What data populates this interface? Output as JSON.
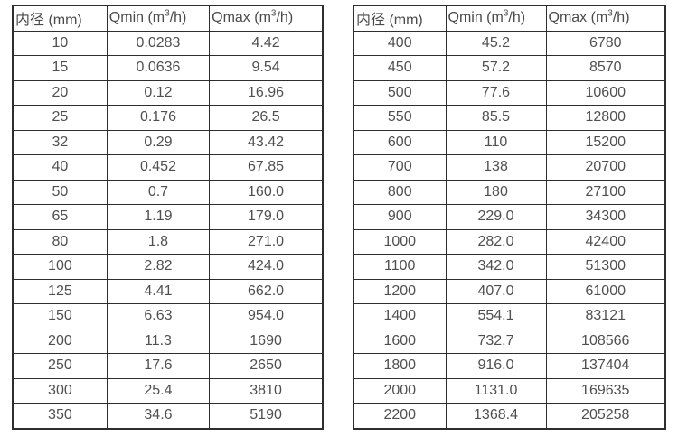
{
  "page": {
    "background_color": "#ffffff",
    "text_color": "#4f4f4f",
    "border_color": "#2e2e2e"
  },
  "tables": [
    {
      "name": "small-diameter-spec-table",
      "headers": [
        {
          "pre": "内径 (mm)",
          "sup": "",
          "post": ""
        },
        {
          "pre": "Qmin (m",
          "sup": "3",
          "post": "/h)"
        },
        {
          "pre": "Qmax (m",
          "sup": "3",
          "post": "/h)"
        }
      ],
      "rows": [
        [
          "10",
          "0.0283",
          "4.42"
        ],
        [
          "15",
          "0.0636",
          "9.54"
        ],
        [
          "20",
          "0.12",
          "16.96"
        ],
        [
          "25",
          "0.176",
          "26.5"
        ],
        [
          "32",
          "0.29",
          "43.42"
        ],
        [
          "40",
          "0.452",
          "67.85"
        ],
        [
          "50",
          "0.7",
          "160.0"
        ],
        [
          "65",
          "1.19",
          "179.0"
        ],
        [
          "80",
          "1.8",
          "271.0"
        ],
        [
          "100",
          "2.82",
          "424.0"
        ],
        [
          "125",
          "4.41",
          "662.0"
        ],
        [
          "150",
          "6.63",
          "954.0"
        ],
        [
          "200",
          "11.3",
          "1690"
        ],
        [
          "250",
          "17.6",
          "2650"
        ],
        [
          "300",
          "25.4",
          "3810"
        ],
        [
          "350",
          "34.6",
          "5190"
        ]
      ]
    },
    {
      "name": "large-diameter-spec-table",
      "headers": [
        {
          "pre": "内径 (mm)",
          "sup": "",
          "post": ""
        },
        {
          "pre": "Qmin (m",
          "sup": "3",
          "post": "/h)"
        },
        {
          "pre": "Qmax (m",
          "sup": "3",
          "post": "/h)"
        }
      ],
      "rows": [
        [
          "400",
          "45.2",
          "6780"
        ],
        [
          "450",
          "57.2",
          "8570"
        ],
        [
          "500",
          "77.6",
          "10600"
        ],
        [
          "550",
          "85.5",
          "12800"
        ],
        [
          "600",
          "110",
          "15200"
        ],
        [
          "700",
          "138",
          "20700"
        ],
        [
          "800",
          "180",
          "27100"
        ],
        [
          "900",
          "229.0",
          "34300"
        ],
        [
          "1000",
          "282.0",
          "42400"
        ],
        [
          "1100",
          "342.0",
          "51300"
        ],
        [
          "1200",
          "407.0",
          "61000"
        ],
        [
          "1400",
          "554.1",
          "83121"
        ],
        [
          "1600",
          "732.7",
          "108566"
        ],
        [
          "1800",
          "916.0",
          "137404"
        ],
        [
          "2000",
          "1131.0",
          "169635"
        ],
        [
          "2200",
          "1368.4",
          "205258"
        ]
      ]
    }
  ]
}
